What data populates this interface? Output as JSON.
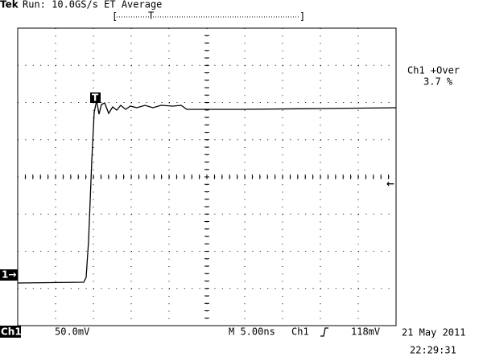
{
  "header": {
    "brand": "Tek",
    "status": "Run: 10.0GS/s ET Average",
    "record_trigger": "T"
  },
  "markers": {
    "trigger": "T",
    "channel": "1→",
    "level_arrow": "←"
  },
  "measurement": {
    "label": "Ch1 +Over",
    "value": "3.7 %"
  },
  "footer": {
    "channel": "Ch1",
    "scale": "50.0mV",
    "timebase": "M 5.00ns",
    "trigger_source": "Ch1",
    "trigger_level": "118mV",
    "date": "21 May 2011",
    "time": "22:29:31"
  }
}
